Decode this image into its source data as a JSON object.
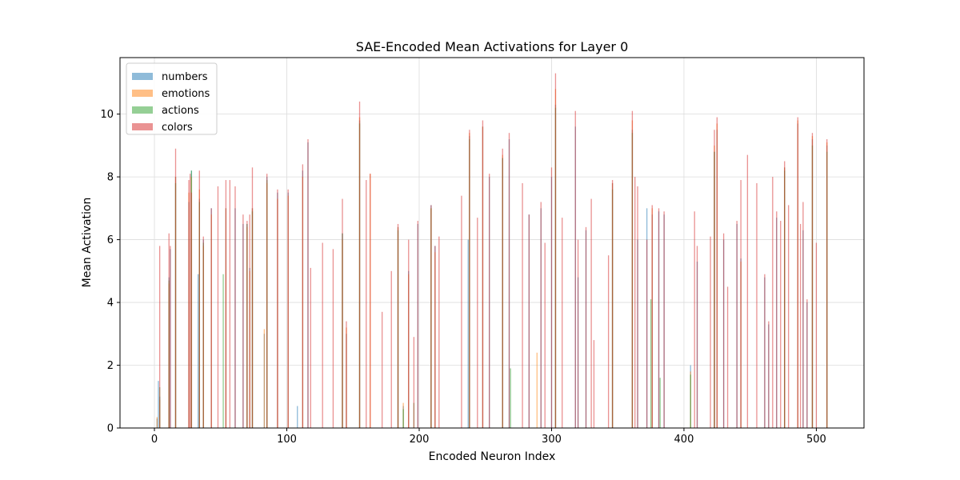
{
  "chart_data": {
    "type": "bar",
    "title": "SAE-Encoded Mean Activations for Layer 0",
    "xlabel": "Encoded Neuron Index",
    "ylabel": "Mean Activation",
    "xlim": [
      -26,
      536
    ],
    "ylim": [
      0,
      11.8
    ],
    "xticks": [
      0,
      100,
      200,
      300,
      400,
      500
    ],
    "yticks": [
      0,
      2,
      4,
      6,
      8,
      10
    ],
    "grid": true,
    "legend_position": "top-left",
    "colors": {
      "numbers": "#1f77b4",
      "emotions": "#ff7f0e",
      "actions": "#2ca02c",
      "colors": "#d62728",
      "overlap": "#a0522d"
    },
    "series": [
      {
        "name": "numbers",
        "values": [
          [
            2,
            0.3
          ],
          [
            3,
            1.5
          ],
          [
            4,
            1.0
          ],
          [
            11,
            4.8
          ],
          [
            12,
            5.7
          ],
          [
            16,
            8.0
          ],
          [
            26,
            7.2
          ],
          [
            28,
            8.2
          ],
          [
            33,
            4.9
          ],
          [
            34,
            7.3
          ],
          [
            37,
            6.0
          ],
          [
            43,
            7.0
          ],
          [
            54,
            7.0
          ],
          [
            61,
            7.0
          ],
          [
            67,
            6.5
          ],
          [
            70,
            6.5
          ],
          [
            72,
            5.1
          ],
          [
            74,
            7.0
          ],
          [
            83,
            3.0
          ],
          [
            85,
            8.0
          ],
          [
            93,
            7.5
          ],
          [
            101,
            7.5
          ],
          [
            108,
            0.7
          ],
          [
            112,
            8.2
          ],
          [
            116,
            9.1
          ],
          [
            142,
            6.2
          ],
          [
            145,
            3.0
          ],
          [
            155,
            9.8
          ],
          [
            184,
            6.4
          ],
          [
            188,
            0.7
          ],
          [
            192,
            5.0
          ],
          [
            199,
            6.5
          ],
          [
            209,
            7.1
          ],
          [
            212,
            5.8
          ],
          [
            237,
            6.0
          ],
          [
            238,
            9.3
          ],
          [
            248,
            9.6
          ],
          [
            253,
            8.0
          ],
          [
            263,
            8.6
          ],
          [
            268,
            9.2
          ],
          [
            283,
            6.8
          ],
          [
            292,
            7.0
          ],
          [
            300,
            8.0
          ],
          [
            303,
            10.3
          ],
          [
            318,
            9.6
          ],
          [
            320,
            4.8
          ],
          [
            326,
            6.3
          ],
          [
            346,
            7.8
          ],
          [
            361,
            9.5
          ],
          [
            365,
            6.0
          ],
          [
            372,
            7.0
          ],
          [
            376,
            6.8
          ],
          [
            381,
            6.9
          ],
          [
            385,
            6.8
          ],
          [
            405,
            2.0
          ],
          [
            410,
            5.3
          ],
          [
            423,
            8.8
          ],
          [
            425,
            9.5
          ],
          [
            430,
            6.0
          ],
          [
            440,
            6.5
          ],
          [
            443,
            5.4
          ],
          [
            461,
            4.8
          ],
          [
            464,
            3.3
          ],
          [
            470,
            6.7
          ],
          [
            476,
            8.3
          ],
          [
            486,
            9.7
          ],
          [
            490,
            6.3
          ],
          [
            493,
            4.0
          ],
          [
            497,
            9.2
          ],
          [
            508,
            9.0
          ]
        ]
      },
      {
        "name": "emotions",
        "values": [
          [
            2,
            0.35
          ],
          [
            4,
            0.9
          ],
          [
            11,
            4.6
          ],
          [
            16,
            8.0
          ],
          [
            26,
            7.5
          ],
          [
            28,
            8.0
          ],
          [
            34,
            7.6
          ],
          [
            37,
            5.8
          ],
          [
            43,
            6.8
          ],
          [
            54,
            7.0
          ],
          [
            70,
            6.4
          ],
          [
            72,
            5.0
          ],
          [
            74,
            7.0
          ],
          [
            83,
            3.15
          ],
          [
            85,
            7.8
          ],
          [
            93,
            7.3
          ],
          [
            101,
            7.4
          ],
          [
            112,
            8.0
          ],
          [
            142,
            6.0
          ],
          [
            145,
            3.2
          ],
          [
            155,
            9.9
          ],
          [
            163,
            8.1
          ],
          [
            184,
            6.4
          ],
          [
            188,
            0.8
          ],
          [
            192,
            4.9
          ],
          [
            209,
            7.0
          ],
          [
            212,
            5.6
          ],
          [
            238,
            9.4
          ],
          [
            248,
            9.6
          ],
          [
            263,
            8.7
          ],
          [
            289,
            2.4
          ],
          [
            303,
            10.8
          ],
          [
            346,
            7.8
          ],
          [
            361,
            9.8
          ],
          [
            376,
            7.0
          ],
          [
            405,
            1.8
          ],
          [
            423,
            9.0
          ],
          [
            425,
            9.7
          ],
          [
            443,
            5.3
          ],
          [
            476,
            8.3
          ],
          [
            486,
            9.8
          ],
          [
            497,
            9.3
          ],
          [
            508,
            9.1
          ]
        ]
      },
      {
        "name": "actions",
        "values": [
          [
            4,
            1.3
          ],
          [
            11,
            4.7
          ],
          [
            16,
            7.8
          ],
          [
            28,
            8.2
          ],
          [
            34,
            7.2
          ],
          [
            37,
            5.9
          ],
          [
            52,
            4.9
          ],
          [
            70,
            6.5
          ],
          [
            74,
            6.9
          ],
          [
            85,
            7.9
          ],
          [
            142,
            6.2
          ],
          [
            155,
            9.7
          ],
          [
            184,
            6.3
          ],
          [
            188,
            0.6
          ],
          [
            196,
            0.8
          ],
          [
            209,
            7.0
          ],
          [
            238,
            9.2
          ],
          [
            263,
            8.6
          ],
          [
            269,
            1.9
          ],
          [
            303,
            10.2
          ],
          [
            346,
            7.6
          ],
          [
            361,
            9.4
          ],
          [
            375,
            4.1
          ],
          [
            382,
            1.6
          ],
          [
            405,
            1.7
          ],
          [
            423,
            8.8
          ],
          [
            476,
            8.2
          ],
          [
            497,
            9.0
          ],
          [
            508,
            8.8
          ]
        ]
      },
      {
        "name": "colors",
        "values": [
          [
            4,
            5.8
          ],
          [
            11,
            6.2
          ],
          [
            12,
            5.8
          ],
          [
            16,
            8.9
          ],
          [
            26,
            7.9
          ],
          [
            27,
            8.1
          ],
          [
            28,
            7.5
          ],
          [
            34,
            8.2
          ],
          [
            37,
            6.1
          ],
          [
            43,
            7.0
          ],
          [
            48,
            7.7
          ],
          [
            54,
            7.9
          ],
          [
            57,
            7.9
          ],
          [
            61,
            7.7
          ],
          [
            67,
            6.8
          ],
          [
            70,
            6.6
          ],
          [
            72,
            6.8
          ],
          [
            74,
            8.3
          ],
          [
            85,
            8.1
          ],
          [
            93,
            7.6
          ],
          [
            101,
            7.6
          ],
          [
            112,
            8.4
          ],
          [
            116,
            9.2
          ],
          [
            118,
            5.1
          ],
          [
            127,
            5.9
          ],
          [
            135,
            5.7
          ],
          [
            142,
            7.3
          ],
          [
            145,
            3.4
          ],
          [
            155,
            10.4
          ],
          [
            160,
            7.9
          ],
          [
            163,
            8.1
          ],
          [
            172,
            3.7
          ],
          [
            179,
            5.0
          ],
          [
            184,
            6.5
          ],
          [
            192,
            6.0
          ],
          [
            196,
            2.9
          ],
          [
            199,
            6.6
          ],
          [
            209,
            7.1
          ],
          [
            212,
            5.8
          ],
          [
            215,
            6.1
          ],
          [
            232,
            7.4
          ],
          [
            238,
            9.5
          ],
          [
            244,
            6.7
          ],
          [
            248,
            9.8
          ],
          [
            253,
            8.1
          ],
          [
            263,
            8.9
          ],
          [
            268,
            9.4
          ],
          [
            278,
            7.8
          ],
          [
            283,
            6.8
          ],
          [
            292,
            7.2
          ],
          [
            295,
            5.9
          ],
          [
            300,
            8.3
          ],
          [
            303,
            11.3
          ],
          [
            308,
            6.7
          ],
          [
            318,
            10.1
          ],
          [
            320,
            6.0
          ],
          [
            326,
            6.4
          ],
          [
            330,
            7.3
          ],
          [
            332,
            2.8
          ],
          [
            343,
            5.5
          ],
          [
            346,
            7.9
          ],
          [
            361,
            10.1
          ],
          [
            363,
            8.0
          ],
          [
            365,
            7.7
          ],
          [
            372,
            6.0
          ],
          [
            376,
            7.1
          ],
          [
            381,
            7.0
          ],
          [
            385,
            6.9
          ],
          [
            408,
            6.9
          ],
          [
            410,
            5.8
          ],
          [
            420,
            6.1
          ],
          [
            423,
            9.5
          ],
          [
            425,
            9.9
          ],
          [
            430,
            6.2
          ],
          [
            433,
            4.5
          ],
          [
            440,
            6.6
          ],
          [
            443,
            7.9
          ],
          [
            448,
            8.7
          ],
          [
            455,
            7.8
          ],
          [
            461,
            4.9
          ],
          [
            464,
            3.4
          ],
          [
            467,
            8.0
          ],
          [
            470,
            6.9
          ],
          [
            473,
            6.6
          ],
          [
            476,
            8.5
          ],
          [
            479,
            7.1
          ],
          [
            486,
            9.9
          ],
          [
            488,
            6.5
          ],
          [
            490,
            7.2
          ],
          [
            493,
            4.1
          ],
          [
            497,
            9.4
          ],
          [
            500,
            5.9
          ],
          [
            508,
            9.2
          ]
        ]
      }
    ]
  }
}
